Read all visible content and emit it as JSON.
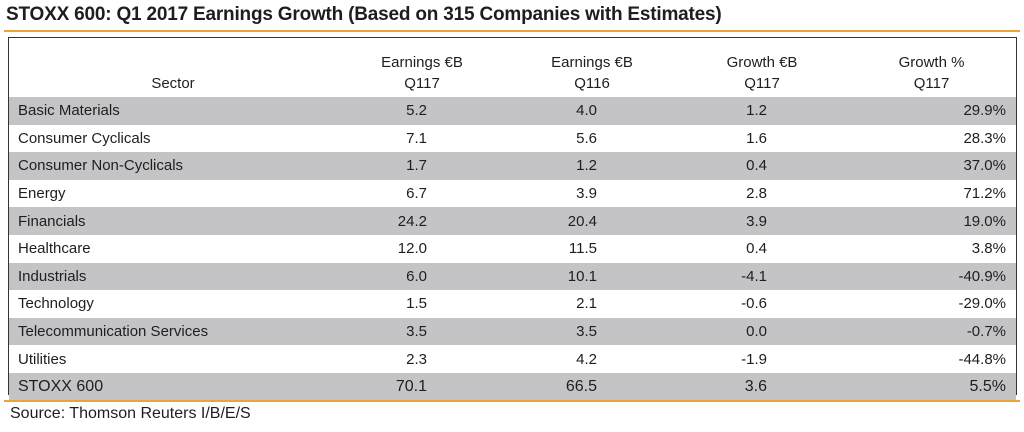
{
  "title": "STOXX 600: Q1 2017 Earnings Growth (Based on 315 Companies with Estimates)",
  "colors": {
    "accent_rule": "#f0a23a",
    "row_shade": "#c4c4c6"
  },
  "table": {
    "headers": {
      "sector": "Sector",
      "earnings_q117": [
        "Earnings €B",
        "Q117"
      ],
      "earnings_q116": [
        "Earnings €B",
        "Q116"
      ],
      "growth_eur_q117": [
        "Growth €B",
        "Q117"
      ],
      "growth_pct_q117": [
        "Growth %",
        "Q117"
      ]
    },
    "rows": [
      {
        "sector": "Basic Materials",
        "earnings_q117": "5.2",
        "earnings_q116": "4.0",
        "growth_eur": "1.2",
        "growth_pct": "29.9%"
      },
      {
        "sector": "Consumer Cyclicals",
        "earnings_q117": "7.1",
        "earnings_q116": "5.6",
        "growth_eur": "1.6",
        "growth_pct": "28.3%"
      },
      {
        "sector": "Consumer Non-Cyclicals",
        "earnings_q117": "1.7",
        "earnings_q116": "1.2",
        "growth_eur": "0.4",
        "growth_pct": "37.0%"
      },
      {
        "sector": "Energy",
        "earnings_q117": "6.7",
        "earnings_q116": "3.9",
        "growth_eur": "2.8",
        "growth_pct": "71.2%"
      },
      {
        "sector": "Financials",
        "earnings_q117": "24.2",
        "earnings_q116": "20.4",
        "growth_eur": "3.9",
        "growth_pct": "19.0%"
      },
      {
        "sector": "Healthcare",
        "earnings_q117": "12.0",
        "earnings_q116": "11.5",
        "growth_eur": "0.4",
        "growth_pct": "3.8%"
      },
      {
        "sector": "Industrials",
        "earnings_q117": "6.0",
        "earnings_q116": "10.1",
        "growth_eur": "-4.1",
        "growth_pct": "-40.9%"
      },
      {
        "sector": "Technology",
        "earnings_q117": "1.5",
        "earnings_q116": "2.1",
        "growth_eur": "-0.6",
        "growth_pct": "-29.0%"
      },
      {
        "sector": "Telecommunication Services",
        "earnings_q117": "3.5",
        "earnings_q116": "3.5",
        "growth_eur": "0.0",
        "growth_pct": "-0.7%"
      },
      {
        "sector": "Utilities",
        "earnings_q117": "2.3",
        "earnings_q116": "4.2",
        "growth_eur": "-1.9",
        "growth_pct": "-44.8%"
      }
    ],
    "total": {
      "sector": "STOXX 600",
      "earnings_q117": "70.1",
      "earnings_q116": "66.5",
      "growth_eur": "3.6",
      "growth_pct": "5.5%"
    }
  },
  "source": "Source: Thomson Reuters I/B/E/S"
}
